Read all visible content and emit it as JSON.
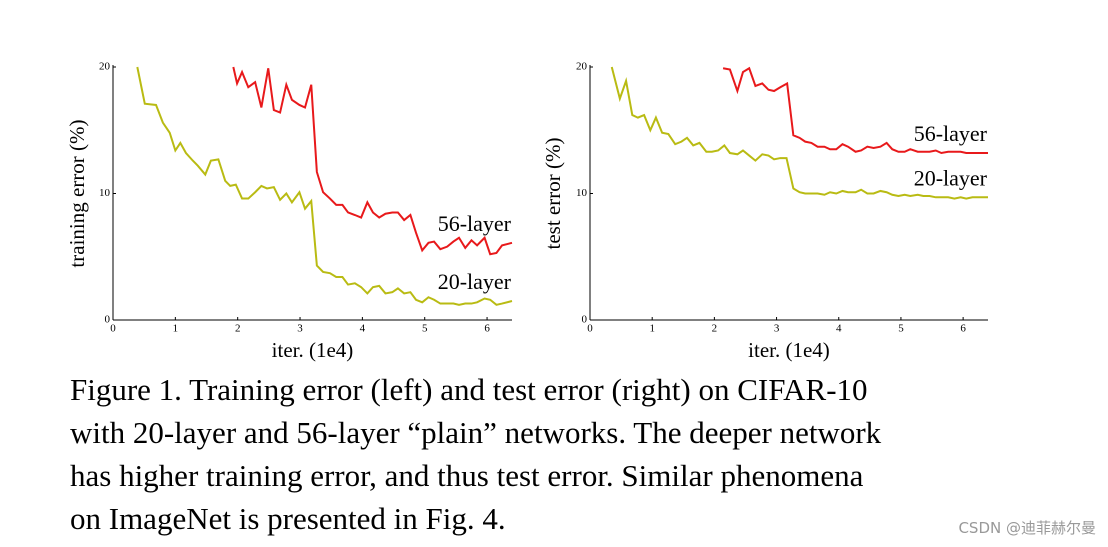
{
  "chart_data": [
    {
      "type": "line",
      "ylabel": "training error (%)",
      "xlabel": "iter. (1e4)",
      "xlim": [
        0,
        6.4
      ],
      "ylim": [
        0,
        20
      ],
      "xticks": [
        0,
        1,
        2,
        3,
        4,
        5,
        6
      ],
      "yticks": [
        0,
        10,
        20
      ],
      "series": [
        {
          "name": "56-layer",
          "color": "#e8191b",
          "x": [
            1.93,
            1.99,
            2.07,
            2.17,
            2.28,
            2.38,
            2.49,
            2.58,
            2.68,
            2.78,
            2.87,
            2.99,
            3.08,
            3.18,
            3.27,
            3.37,
            3.48,
            3.58,
            3.68,
            3.77,
            3.88,
            3.98,
            4.08,
            4.17,
            4.27,
            4.37,
            4.48,
            4.57,
            4.67,
            4.77,
            4.86,
            4.96,
            5.06,
            5.15,
            5.25,
            5.36,
            5.46,
            5.55,
            5.65,
            5.75,
            5.84,
            5.96,
            6.05,
            6.15,
            6.24,
            6.4
          ],
          "values": [
            20,
            18.7,
            19.6,
            18.4,
            18.8,
            16.8,
            19.9,
            16.6,
            16.4,
            18.6,
            17.4,
            17.0,
            16.8,
            18.6,
            11.7,
            10.1,
            9.6,
            9.1,
            9.1,
            8.5,
            8.3,
            8.1,
            9.3,
            8.5,
            8.1,
            8.4,
            8.5,
            8.5,
            7.9,
            8.3,
            6.9,
            5.5,
            6.1,
            6.2,
            5.6,
            5.8,
            6.2,
            6.5,
            5.7,
            6.3,
            5.9,
            6.5,
            5.2,
            5.3,
            5.9,
            6.1
          ]
        },
        {
          "name": "20-layer",
          "color": "#b9bb13",
          "x": [
            0.39,
            0.51,
            0.69,
            0.8,
            0.91,
            1.0,
            1.08,
            1.17,
            1.28,
            1.36,
            1.48,
            1.57,
            1.69,
            1.8,
            1.88,
            1.97,
            2.07,
            2.17,
            2.28,
            2.38,
            2.47,
            2.58,
            2.68,
            2.78,
            2.87,
            2.99,
            3.08,
            3.18,
            3.27,
            3.37,
            3.48,
            3.58,
            3.68,
            3.77,
            3.88,
            3.98,
            4.08,
            4.17,
            4.27,
            4.37,
            4.48,
            4.57,
            4.67,
            4.77,
            4.86,
            4.96,
            5.06,
            5.15,
            5.25,
            5.36,
            5.46,
            5.55,
            5.65,
            5.75,
            5.84,
            5.96,
            6.05,
            6.15,
            6.24,
            6.4
          ],
          "values": [
            20,
            17.1,
            17.0,
            15.6,
            14.8,
            13.4,
            14.0,
            13.2,
            12.6,
            12.2,
            11.5,
            12.6,
            12.7,
            11.0,
            10.6,
            10.7,
            9.6,
            9.6,
            10.1,
            10.6,
            10.4,
            10.5,
            9.5,
            10.0,
            9.3,
            10.1,
            8.8,
            9.4,
            4.3,
            3.8,
            3.7,
            3.4,
            3.4,
            2.8,
            2.9,
            2.6,
            2.1,
            2.6,
            2.7,
            2.1,
            2.2,
            2.5,
            2.1,
            2.2,
            1.6,
            1.4,
            1.8,
            1.6,
            1.3,
            1.3,
            1.3,
            1.2,
            1.3,
            1.3,
            1.4,
            1.7,
            1.6,
            1.2,
            1.3,
            1.5
          ]
        }
      ]
    },
    {
      "type": "line",
      "ylabel": "test error (%)",
      "xlabel": "iter. (1e4)",
      "xlim": [
        0,
        6.4
      ],
      "ylim": [
        0,
        20
      ],
      "xticks": [
        0,
        1,
        2,
        3,
        4,
        5,
        6
      ],
      "yticks": [
        0,
        10,
        20
      ],
      "series": [
        {
          "name": "56-layer",
          "color": "#e8191b",
          "x": [
            2.14,
            2.25,
            2.37,
            2.46,
            2.56,
            2.66,
            2.77,
            2.87,
            2.96,
            3.06,
            3.17,
            3.27,
            3.37,
            3.46,
            3.56,
            3.66,
            3.77,
            3.86,
            3.96,
            4.06,
            4.15,
            4.27,
            4.36,
            4.46,
            4.56,
            4.67,
            4.77,
            4.86,
            4.96,
            5.06,
            5.15,
            5.27,
            5.36,
            5.46,
            5.56,
            5.65,
            5.76,
            5.86,
            5.96,
            6.05,
            6.15,
            6.4
          ],
          "values": [
            19.9,
            19.8,
            18.1,
            19.6,
            19.9,
            18.5,
            18.7,
            18.2,
            18.1,
            18.4,
            18.7,
            14.6,
            14.4,
            14.1,
            14.0,
            13.7,
            13.7,
            13.5,
            13.5,
            13.9,
            13.7,
            13.3,
            13.4,
            13.7,
            13.6,
            13.7,
            14.0,
            13.5,
            13.3,
            13.3,
            13.5,
            13.3,
            13.3,
            13.3,
            13.4,
            13.2,
            13.3,
            13.3,
            13.3,
            13.2,
            13.2,
            13.2
          ]
        },
        {
          "name": "20-layer",
          "color": "#b9bb13",
          "x": [
            0.35,
            0.48,
            0.58,
            0.68,
            0.77,
            0.87,
            0.97,
            1.06,
            1.16,
            1.26,
            1.37,
            1.47,
            1.56,
            1.66,
            1.76,
            1.87,
            1.96,
            2.06,
            2.16,
            2.25,
            2.37,
            2.46,
            2.56,
            2.66,
            2.77,
            2.87,
            2.96,
            3.06,
            3.16,
            3.27,
            3.37,
            3.46,
            3.56,
            3.66,
            3.77,
            3.86,
            3.96,
            4.06,
            4.15,
            4.27,
            4.36,
            4.46,
            4.56,
            4.67,
            4.77,
            4.86,
            4.96,
            5.06,
            5.15,
            5.27,
            5.36,
            5.46,
            5.56,
            5.65,
            5.76,
            5.86,
            5.96,
            6.05,
            6.15,
            6.4
          ],
          "values": [
            20,
            17.5,
            18.9,
            16.2,
            16.0,
            16.2,
            15.0,
            16.0,
            14.8,
            14.7,
            13.9,
            14.1,
            14.4,
            13.8,
            14.0,
            13.3,
            13.3,
            13.4,
            13.8,
            13.2,
            13.1,
            13.4,
            13.0,
            12.6,
            13.1,
            13.0,
            12.7,
            12.8,
            12.8,
            10.4,
            10.1,
            10.0,
            10.0,
            10.0,
            9.9,
            10.1,
            10.0,
            10.2,
            10.1,
            10.1,
            10.3,
            10.0,
            10.0,
            10.2,
            10.1,
            9.9,
            9.8,
            9.9,
            9.8,
            9.9,
            9.8,
            9.8,
            9.7,
            9.7,
            9.7,
            9.6,
            9.7,
            9.6,
            9.7,
            9.7
          ]
        }
      ]
    }
  ],
  "caption": {
    "lines": [
      "Figure 1. Training error (left) and test error (right) on CIFAR-10",
      "with 20-layer and 56-layer “plain” networks. The deeper network",
      "has higher training error, and thus test error.  Similar phenomena",
      "on ImageNet is presented in Fig. 4."
    ]
  },
  "watermark": "CSDN @迪菲赫尔曼"
}
